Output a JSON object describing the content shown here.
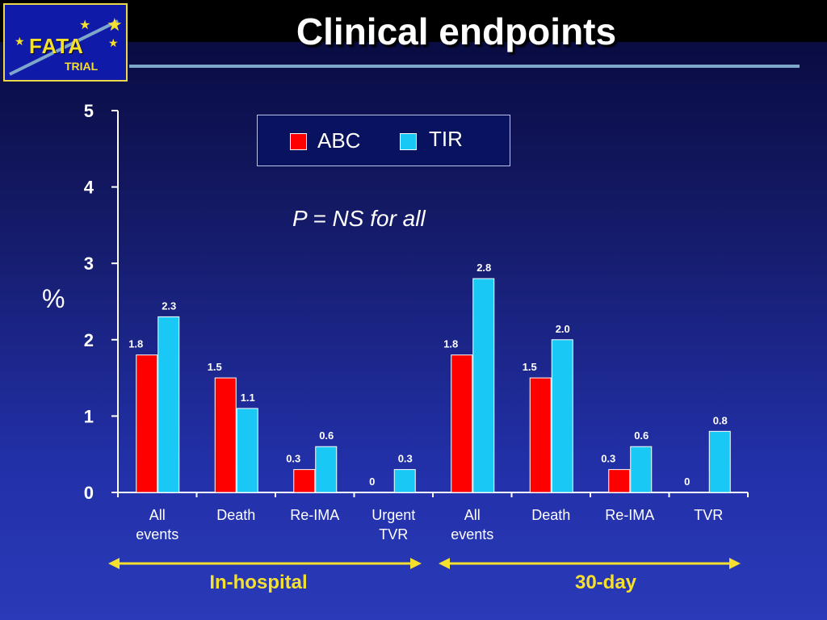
{
  "title": "Clinical endpoints",
  "logo": {
    "name": "FATA",
    "sub": "TRIAL"
  },
  "annotation": "P = NS for all",
  "periods": [
    "In-hospital",
    "30-day"
  ],
  "colors": {
    "ABC": "#ff0000",
    "TIR": "#19c8f5",
    "accent": "#f5e030"
  },
  "chart_data": {
    "type": "bar",
    "categories": [
      "All events",
      "Death",
      "Re-IMA",
      "Urgent TVR",
      "All events",
      "Death",
      "Re-IMA",
      "TVR"
    ],
    "category_lines": [
      [
        "All",
        "events"
      ],
      [
        "Death"
      ],
      [
        "Re-IMA"
      ],
      [
        "Urgent",
        "TVR"
      ],
      [
        "All",
        "events"
      ],
      [
        "Death"
      ],
      [
        "Re-IMA"
      ],
      [
        "TVR"
      ]
    ],
    "series": [
      {
        "name": "ABC",
        "values": [
          1.8,
          1.5,
          0.3,
          0,
          1.8,
          1.5,
          0.3,
          0
        ],
        "labels": [
          "1.8",
          "1.5",
          "0.3",
          "0",
          "1.8",
          "1.5",
          "0.3",
          "0"
        ]
      },
      {
        "name": "TIR",
        "values": [
          2.3,
          1.1,
          0.6,
          0.3,
          2.8,
          2.0,
          0.6,
          0.8
        ],
        "labels": [
          "2.3",
          "1.1",
          "0.6",
          "0.3",
          "2.8",
          "2.0",
          "0.6",
          "0.8"
        ]
      }
    ],
    "ylabel": "%",
    "ylim": [
      0,
      5
    ],
    "yticks": [
      0,
      1,
      2,
      3,
      4,
      5
    ],
    "grid": false,
    "legend_position": "top-center"
  }
}
